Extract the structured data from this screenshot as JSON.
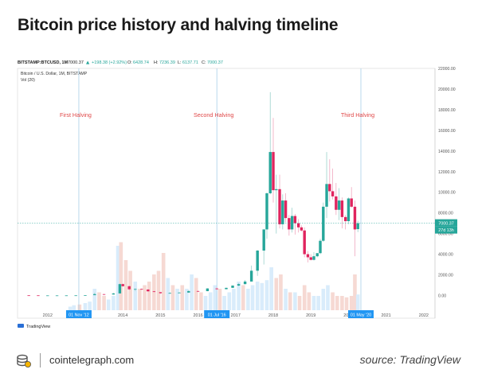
{
  "title": "Bitcoin price history and halving timeline",
  "footer": {
    "site": "cointelegraph.com",
    "source_prefix": "source:",
    "source_name": "TradingView"
  },
  "tradingview_badge": "TradingView",
  "chart_data": {
    "type": "candlestick",
    "header": {
      "symbol": "BITSTAMP:BTCUSD, 1M",
      "price": "7000.37",
      "change": "+198.38 (+2.92%)",
      "open_label": "O:",
      "open": "6428.74",
      "high_label": "H:",
      "high": "7236.39",
      "low_label": "L:",
      "low": "6137.71",
      "close_label": "C:",
      "close": "7000.37"
    },
    "subtitle": "Bitcoin / U.S. Dollar, 1M, BITSTAMP",
    "volume_label": "Vol (20)",
    "x_ticks": [
      "2012",
      "2014",
      "2015",
      "2016",
      "2017",
      "2018",
      "2019",
      "2020",
      "2021",
      "2022"
    ],
    "x_tick_years": [
      2012,
      2014,
      2015,
      2016,
      2017,
      2018,
      2019,
      2020,
      2021,
      2022
    ],
    "x_range": [
      2011.2,
      2022.3
    ],
    "y_ticks": [
      "0.00",
      "2000.00",
      "4000.00",
      "6000.00",
      "8000.00",
      "10000.00",
      "12000.00",
      "14000.00",
      "16000.00",
      "18000.00",
      "20000.00",
      "22000.00"
    ],
    "y_tick_values": [
      0,
      2000,
      4000,
      6000,
      8000,
      10000,
      12000,
      14000,
      16000,
      18000,
      20000,
      22000
    ],
    "y_range": [
      -2200,
      22000
    ],
    "last_price_label": "7000.37",
    "countdown_label": "27d 13h",
    "last_price": 7000.37,
    "halvings": [
      {
        "name": "First Halving",
        "date_label": "01 Nov '12",
        "year": 2012.83
      },
      {
        "name": "Second Halving",
        "date_label": "01 Jul '16",
        "year": 2016.5
      },
      {
        "name": "Third Halving",
        "date_label": "01 May '20",
        "year": 2020.33
      }
    ],
    "colors": {
      "up": "#26a69a",
      "down": "#e0245e",
      "halving_line": "#a8cfe8",
      "halving_text": "#e04848",
      "price_line": "#26a69a",
      "date_badge": "#2196f3"
    },
    "candles": [
      {
        "t": 2011.5,
        "o": 14,
        "h": 17,
        "l": 10,
        "c": 11
      },
      {
        "t": 2011.75,
        "o": 11,
        "h": 12,
        "l": 2,
        "c": 4
      },
      {
        "t": 2012.0,
        "o": 5,
        "h": 7,
        "l": 4,
        "c": 5
      },
      {
        "t": 2012.25,
        "o": 5,
        "h": 6,
        "l": 4,
        "c": 5
      },
      {
        "t": 2012.5,
        "o": 5,
        "h": 8,
        "l": 5,
        "c": 7
      },
      {
        "t": 2012.75,
        "o": 7,
        "h": 13,
        "l": 7,
        "c": 12
      },
      {
        "t": 2013.0,
        "o": 13,
        "h": 35,
        "l": 12,
        "c": 30
      },
      {
        "t": 2013.25,
        "o": 30,
        "h": 266,
        "l": 40,
        "c": 130
      },
      {
        "t": 2013.5,
        "o": 130,
        "h": 135,
        "l": 60,
        "c": 95
      },
      {
        "t": 2013.75,
        "o": 95,
        "h": 250,
        "l": 90,
        "c": 200
      },
      {
        "t": 2013.92,
        "o": 200,
        "h": 1160,
        "l": 190,
        "c": 1100
      },
      {
        "t": 2014.0,
        "o": 1100,
        "h": 1160,
        "l": 850,
        "c": 900
      },
      {
        "t": 2014.17,
        "o": 900,
        "h": 950,
        "l": 500,
        "c": 600
      },
      {
        "t": 2014.33,
        "o": 600,
        "h": 680,
        "l": 420,
        "c": 630
      },
      {
        "t": 2014.5,
        "o": 630,
        "h": 680,
        "l": 550,
        "c": 580
      },
      {
        "t": 2014.67,
        "o": 580,
        "h": 600,
        "l": 380,
        "c": 400
      },
      {
        "t": 2014.83,
        "o": 400,
        "h": 450,
        "l": 300,
        "c": 350
      },
      {
        "t": 2015.0,
        "o": 320,
        "h": 320,
        "l": 160,
        "c": 220
      },
      {
        "t": 2015.25,
        "o": 220,
        "h": 300,
        "l": 200,
        "c": 240
      },
      {
        "t": 2015.5,
        "o": 240,
        "h": 320,
        "l": 230,
        "c": 280
      },
      {
        "t": 2015.75,
        "o": 280,
        "h": 500,
        "l": 270,
        "c": 430
      },
      {
        "t": 2016.0,
        "o": 430,
        "h": 470,
        "l": 360,
        "c": 420
      },
      {
        "t": 2016.25,
        "o": 420,
        "h": 700,
        "l": 410,
        "c": 680
      },
      {
        "t": 2016.5,
        "o": 680,
        "h": 770,
        "l": 540,
        "c": 610
      },
      {
        "t": 2016.75,
        "o": 610,
        "h": 760,
        "l": 600,
        "c": 740
      },
      {
        "t": 2016.92,
        "o": 740,
        "h": 980,
        "l": 730,
        "c": 960
      },
      {
        "t": 2017.08,
        "o": 960,
        "h": 1200,
        "l": 900,
        "c": 1100
      },
      {
        "t": 2017.25,
        "o": 1100,
        "h": 1500,
        "l": 1080,
        "c": 1350
      },
      {
        "t": 2017.42,
        "o": 1350,
        "h": 2900,
        "l": 1350,
        "c": 2400
      },
      {
        "t": 2017.58,
        "o": 2400,
        "h": 4400,
        "l": 1900,
        "c": 4350
      },
      {
        "t": 2017.75,
        "o": 4350,
        "h": 6400,
        "l": 3000,
        "c": 6400
      },
      {
        "t": 2017.83,
        "o": 6400,
        "h": 10000,
        "l": 5500,
        "c": 9900
      },
      {
        "t": 2017.92,
        "o": 9900,
        "h": 19700,
        "l": 9800,
        "c": 13900
      },
      {
        "t": 2018.0,
        "o": 13900,
        "h": 17200,
        "l": 9000,
        "c": 10200
      },
      {
        "t": 2018.08,
        "o": 10200,
        "h": 11700,
        "l": 6000,
        "c": 10300
      },
      {
        "t": 2018.17,
        "o": 10300,
        "h": 11700,
        "l": 6500,
        "c": 6900
      },
      {
        "t": 2018.25,
        "o": 6900,
        "h": 9800,
        "l": 6400,
        "c": 9200
      },
      {
        "t": 2018.33,
        "o": 9200,
        "h": 9900,
        "l": 7100,
        "c": 7500
      },
      {
        "t": 2018.42,
        "o": 7500,
        "h": 7800,
        "l": 5800,
        "c": 6400
      },
      {
        "t": 2018.5,
        "o": 6400,
        "h": 8500,
        "l": 6100,
        "c": 7700
      },
      {
        "t": 2018.58,
        "o": 7700,
        "h": 7900,
        "l": 5900,
        "c": 7000
      },
      {
        "t": 2018.67,
        "o": 7000,
        "h": 7400,
        "l": 6100,
        "c": 6600
      },
      {
        "t": 2018.75,
        "o": 6600,
        "h": 6800,
        "l": 6200,
        "c": 6300
      },
      {
        "t": 2018.83,
        "o": 6300,
        "h": 6600,
        "l": 3700,
        "c": 4000
      },
      {
        "t": 2018.92,
        "o": 4000,
        "h": 4300,
        "l": 3200,
        "c": 3700
      },
      {
        "t": 2019.0,
        "o": 3700,
        "h": 4000,
        "l": 3400,
        "c": 3450
      },
      {
        "t": 2019.08,
        "o": 3450,
        "h": 4200,
        "l": 3400,
        "c": 3800
      },
      {
        "t": 2019.17,
        "o": 3800,
        "h": 4100,
        "l": 3700,
        "c": 4100
      },
      {
        "t": 2019.25,
        "o": 4100,
        "h": 5500,
        "l": 4000,
        "c": 5300
      },
      {
        "t": 2019.33,
        "o": 5300,
        "h": 9000,
        "l": 5200,
        "c": 8600
      },
      {
        "t": 2019.42,
        "o": 8600,
        "h": 13900,
        "l": 7500,
        "c": 10800
      },
      {
        "t": 2019.5,
        "o": 10800,
        "h": 13200,
        "l": 9100,
        "c": 10100
      },
      {
        "t": 2019.58,
        "o": 10100,
        "h": 12300,
        "l": 9300,
        "c": 9600
      },
      {
        "t": 2019.67,
        "o": 9600,
        "h": 10900,
        "l": 7800,
        "c": 8300
      },
      {
        "t": 2019.75,
        "o": 8300,
        "h": 10400,
        "l": 7300,
        "c": 9200
      },
      {
        "t": 2019.83,
        "o": 9200,
        "h": 9500,
        "l": 6500,
        "c": 7600
      },
      {
        "t": 2019.92,
        "o": 7600,
        "h": 7800,
        "l": 6400,
        "c": 7200
      },
      {
        "t": 2020.0,
        "o": 7200,
        "h": 9500,
        "l": 6900,
        "c": 9400
      },
      {
        "t": 2020.08,
        "o": 9400,
        "h": 10500,
        "l": 8500,
        "c": 8600
      },
      {
        "t": 2020.17,
        "o": 8600,
        "h": 9200,
        "l": 3800,
        "c": 6400
      },
      {
        "t": 2020.25,
        "o": 6428.74,
        "h": 7236.39,
        "l": 6137.71,
        "c": 7000.37
      }
    ],
    "volume": [
      {
        "t": 2012.6,
        "v": 0.05,
        "up": true
      },
      {
        "t": 2012.7,
        "v": 0.07,
        "up": true
      },
      {
        "t": 2012.85,
        "v": 0.08,
        "up": false
      },
      {
        "t": 2013.0,
        "v": 0.1,
        "up": true
      },
      {
        "t": 2013.12,
        "v": 0.12,
        "up": true
      },
      {
        "t": 2013.25,
        "v": 0.3,
        "up": true
      },
      {
        "t": 2013.37,
        "v": 0.25,
        "up": false
      },
      {
        "t": 2013.5,
        "v": 0.2,
        "up": false
      },
      {
        "t": 2013.62,
        "v": 0.15,
        "up": true
      },
      {
        "t": 2013.75,
        "v": 0.2,
        "up": true
      },
      {
        "t": 2013.87,
        "v": 0.9,
        "up": true
      },
      {
        "t": 2013.95,
        "v": 0.95,
        "up": false
      },
      {
        "t": 2014.08,
        "v": 0.7,
        "up": false
      },
      {
        "t": 2014.2,
        "v": 0.55,
        "up": false
      },
      {
        "t": 2014.33,
        "v": 0.4,
        "up": true
      },
      {
        "t": 2014.45,
        "v": 0.3,
        "up": false
      },
      {
        "t": 2014.58,
        "v": 0.35,
        "up": false
      },
      {
        "t": 2014.7,
        "v": 0.4,
        "up": false
      },
      {
        "t": 2014.83,
        "v": 0.5,
        "up": false
      },
      {
        "t": 2014.95,
        "v": 0.55,
        "up": false
      },
      {
        "t": 2015.08,
        "v": 0.8,
        "up": false
      },
      {
        "t": 2015.2,
        "v": 0.45,
        "up": true
      },
      {
        "t": 2015.33,
        "v": 0.35,
        "up": false
      },
      {
        "t": 2015.45,
        "v": 0.3,
        "up": true
      },
      {
        "t": 2015.58,
        "v": 0.35,
        "up": false
      },
      {
        "t": 2015.7,
        "v": 0.3,
        "up": true
      },
      {
        "t": 2015.83,
        "v": 0.5,
        "up": true
      },
      {
        "t": 2015.95,
        "v": 0.45,
        "up": false
      },
      {
        "t": 2016.08,
        "v": 0.25,
        "up": false
      },
      {
        "t": 2016.2,
        "v": 0.2,
        "up": true
      },
      {
        "t": 2016.33,
        "v": 0.25,
        "up": true
      },
      {
        "t": 2016.45,
        "v": 0.35,
        "up": true
      },
      {
        "t": 2016.58,
        "v": 0.3,
        "up": false
      },
      {
        "t": 2016.7,
        "v": 0.2,
        "up": true
      },
      {
        "t": 2016.83,
        "v": 0.25,
        "up": true
      },
      {
        "t": 2016.95,
        "v": 0.3,
        "up": true
      },
      {
        "t": 2017.08,
        "v": 0.4,
        "up": true
      },
      {
        "t": 2017.2,
        "v": 0.35,
        "up": false
      },
      {
        "t": 2017.33,
        "v": 0.3,
        "up": true
      },
      {
        "t": 2017.45,
        "v": 0.35,
        "up": true
      },
      {
        "t": 2017.58,
        "v": 0.4,
        "up": true
      },
      {
        "t": 2017.7,
        "v": 0.38,
        "up": true
      },
      {
        "t": 2017.83,
        "v": 0.42,
        "up": true
      },
      {
        "t": 2017.95,
        "v": 0.6,
        "up": true
      },
      {
        "t": 2018.08,
        "v": 0.45,
        "up": false
      },
      {
        "t": 2018.2,
        "v": 0.5,
        "up": false
      },
      {
        "t": 2018.33,
        "v": 0.3,
        "up": true
      },
      {
        "t": 2018.45,
        "v": 0.25,
        "up": false
      },
      {
        "t": 2018.58,
        "v": 0.25,
        "up": true
      },
      {
        "t": 2018.7,
        "v": 0.2,
        "up": false
      },
      {
        "t": 2018.83,
        "v": 0.35,
        "up": false
      },
      {
        "t": 2018.95,
        "v": 0.25,
        "up": false
      },
      {
        "t": 2019.08,
        "v": 0.2,
        "up": true
      },
      {
        "t": 2019.2,
        "v": 0.2,
        "up": true
      },
      {
        "t": 2019.33,
        "v": 0.3,
        "up": true
      },
      {
        "t": 2019.45,
        "v": 0.35,
        "up": true
      },
      {
        "t": 2019.58,
        "v": 0.25,
        "up": false
      },
      {
        "t": 2019.7,
        "v": 0.2,
        "up": false
      },
      {
        "t": 2019.83,
        "v": 0.2,
        "up": false
      },
      {
        "t": 2019.95,
        "v": 0.18,
        "up": false
      },
      {
        "t": 2020.08,
        "v": 0.2,
        "up": false
      },
      {
        "t": 2020.17,
        "v": 0.5,
        "up": false
      },
      {
        "t": 2020.25,
        "v": 0.22,
        "up": true
      }
    ]
  }
}
